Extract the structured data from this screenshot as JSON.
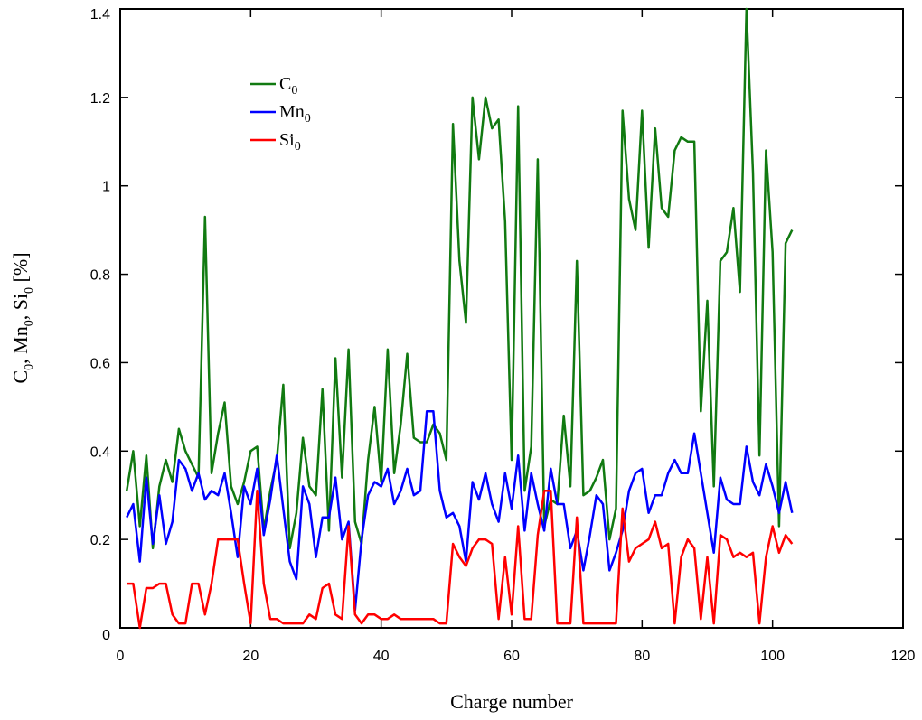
{
  "chart_data": {
    "type": "line",
    "title": "",
    "xlabel": "Charge number",
    "ylabel": {
      "parts": [
        [
          "C",
          "0"
        ],
        [
          "Mn",
          "0"
        ],
        [
          "Si",
          "0"
        ]
      ],
      "unit": "[%]"
    },
    "xlim": [
      0,
      120
    ],
    "ylim": [
      0,
      1.4
    ],
    "xticks": [
      "0",
      "20",
      "40",
      "60",
      "80",
      "100",
      "120"
    ],
    "yticks": [
      "0",
      "0.2",
      "0.4",
      "0.6",
      "0.8",
      "1",
      "1.2",
      "1.4"
    ],
    "xtick_values": [
      0,
      20,
      40,
      60,
      80,
      100,
      120
    ],
    "ytick_values": [
      0,
      0.2,
      0.4,
      0.6,
      0.8,
      1.0,
      1.2,
      1.4
    ],
    "grid": false,
    "legend_position": "upper-left",
    "x": [
      1,
      2,
      3,
      4,
      5,
      6,
      7,
      8,
      9,
      10,
      11,
      12,
      13,
      14,
      15,
      16,
      17,
      18,
      19,
      20,
      21,
      22,
      23,
      24,
      25,
      26,
      27,
      28,
      29,
      30,
      31,
      32,
      33,
      34,
      35,
      36,
      37,
      38,
      39,
      40,
      41,
      42,
      43,
      44,
      45,
      46,
      47,
      48,
      49,
      50,
      51,
      52,
      53,
      54,
      55,
      56,
      57,
      58,
      59,
      60,
      61,
      62,
      63,
      64,
      65,
      66,
      67,
      68,
      69,
      70,
      71,
      72,
      73,
      74,
      75,
      76,
      77,
      78,
      79,
      80,
      81,
      82,
      83,
      84,
      85,
      86,
      87,
      88,
      89,
      90,
      91,
      92,
      93,
      94,
      95,
      96,
      97,
      98,
      99,
      100,
      101,
      102,
      103
    ],
    "series": [
      {
        "name": "C",
        "sub": "0",
        "color": "#117a11",
        "values": [
          0.31,
          0.4,
          0.23,
          0.39,
          0.18,
          0.32,
          0.38,
          0.33,
          0.45,
          0.4,
          0.37,
          0.34,
          0.93,
          0.35,
          0.44,
          0.51,
          0.32,
          0.28,
          0.33,
          0.4,
          0.41,
          0.22,
          0.31,
          0.38,
          0.55,
          0.18,
          0.26,
          0.43,
          0.32,
          0.3,
          0.54,
          0.22,
          0.61,
          0.34,
          0.63,
          0.24,
          0.19,
          0.38,
          0.5,
          0.33,
          0.63,
          0.35,
          0.46,
          0.62,
          0.43,
          0.42,
          0.42,
          0.46,
          0.44,
          0.38,
          1.14,
          0.83,
          0.69,
          1.2,
          1.06,
          1.2,
          1.13,
          1.15,
          0.92,
          0.38,
          1.18,
          0.31,
          0.41,
          1.06,
          0.23,
          0.29,
          0.28,
          0.48,
          0.32,
          0.83,
          0.3,
          0.31,
          0.34,
          0.38,
          0.2,
          0.27,
          1.17,
          0.97,
          0.9,
          1.17,
          0.86,
          1.13,
          0.95,
          0.93,
          1.08,
          1.11,
          1.1,
          1.1,
          0.49,
          0.74,
          0.32,
          0.83,
          0.85,
          0.95,
          0.76,
          1.4,
          1.03,
          0.39,
          1.08,
          0.85,
          0.23,
          0.87,
          0.9
        ]
      },
      {
        "name": "Mn",
        "sub": "0",
        "color": "#0000ff",
        "values": [
          0.25,
          0.28,
          0.15,
          0.34,
          0.19,
          0.3,
          0.19,
          0.24,
          0.38,
          0.36,
          0.31,
          0.35,
          0.29,
          0.31,
          0.3,
          0.35,
          0.26,
          0.16,
          0.32,
          0.28,
          0.36,
          0.21,
          0.29,
          0.39,
          0.27,
          0.15,
          0.11,
          0.32,
          0.28,
          0.16,
          0.25,
          0.25,
          0.34,
          0.2,
          0.24,
          0.04,
          0.2,
          0.3,
          0.33,
          0.32,
          0.36,
          0.28,
          0.31,
          0.36,
          0.3,
          0.31,
          0.49,
          0.49,
          0.31,
          0.25,
          0.26,
          0.23,
          0.15,
          0.33,
          0.29,
          0.35,
          0.28,
          0.24,
          0.35,
          0.27,
          0.39,
          0.22,
          0.35,
          0.28,
          0.22,
          0.36,
          0.28,
          0.28,
          0.18,
          0.22,
          0.13,
          0.21,
          0.3,
          0.28,
          0.13,
          0.17,
          0.22,
          0.31,
          0.35,
          0.36,
          0.26,
          0.3,
          0.3,
          0.35,
          0.38,
          0.35,
          0.35,
          0.44,
          0.35,
          0.26,
          0.17,
          0.34,
          0.29,
          0.28,
          0.28,
          0.41,
          0.33,
          0.3,
          0.37,
          0.32,
          0.26,
          0.33,
          0.26
        ]
      },
      {
        "name": "Si",
        "sub": "0",
        "color": "#ff0000",
        "values": [
          0.1,
          0.1,
          0.0,
          0.09,
          0.09,
          0.1,
          0.1,
          0.03,
          0.01,
          0.01,
          0.1,
          0.1,
          0.03,
          0.1,
          0.2,
          0.2,
          0.2,
          0.2,
          0.1,
          0.01,
          0.31,
          0.1,
          0.02,
          0.02,
          0.01,
          0.01,
          0.01,
          0.01,
          0.03,
          0.02,
          0.09,
          0.1,
          0.03,
          0.02,
          0.23,
          0.03,
          0.01,
          0.03,
          0.03,
          0.02,
          0.02,
          0.03,
          0.02,
          0.02,
          0.02,
          0.02,
          0.02,
          0.02,
          0.01,
          0.01,
          0.19,
          0.16,
          0.14,
          0.18,
          0.2,
          0.2,
          0.19,
          0.02,
          0.16,
          0.03,
          0.23,
          0.02,
          0.02,
          0.21,
          0.31,
          0.31,
          0.01,
          0.01,
          0.01,
          0.25,
          0.01,
          0.01,
          0.01,
          0.01,
          0.01,
          0.01,
          0.27,
          0.15,
          0.18,
          0.19,
          0.2,
          0.24,
          0.18,
          0.19,
          0.01,
          0.16,
          0.2,
          0.18,
          0.02,
          0.16,
          0.01,
          0.21,
          0.2,
          0.16,
          0.17,
          0.16,
          0.17,
          0.01,
          0.16,
          0.23,
          0.17,
          0.21,
          0.19
        ]
      }
    ]
  }
}
